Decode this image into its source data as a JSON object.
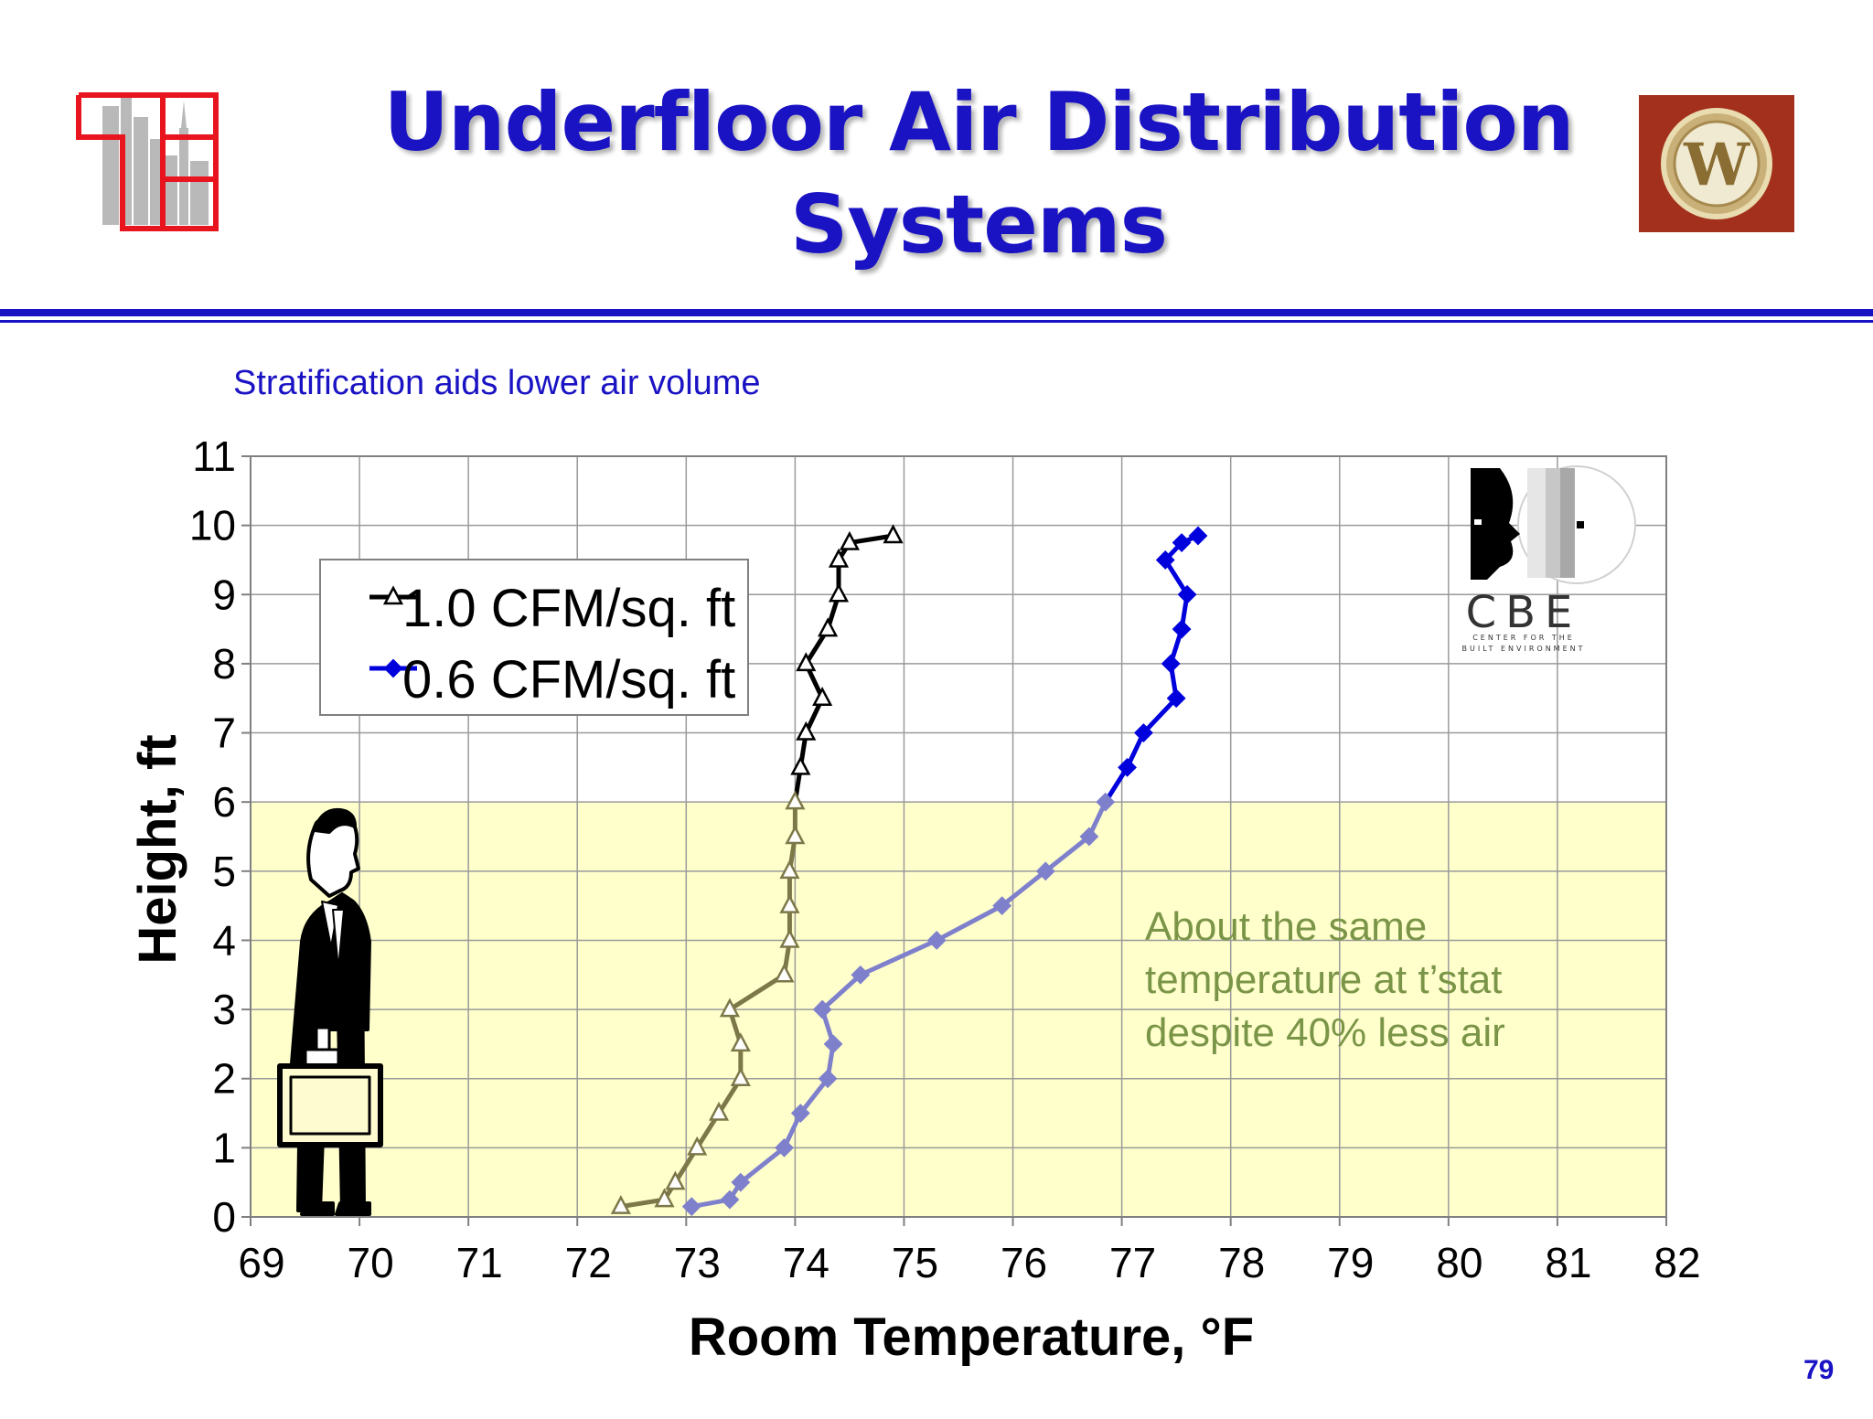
{
  "slide": {
    "title_line1": "Underfloor Air Distribution",
    "title_line2": "Systems",
    "subtitle": "Stratification aids lower air volume",
    "page_number": "79"
  },
  "logos": {
    "right_badge_letter": "W",
    "cbe_text": "CBE",
    "cbe_line1": "CENTER FOR THE",
    "cbe_line2": "BUILT ENVIRONMENT"
  },
  "colors": {
    "title_blue": "#1a13c4",
    "occupied_zone": "#ffffcc",
    "series1_upper": "#000000",
    "series1_lower": "#7d7849",
    "series2_upper": "#0000dd",
    "series2_lower": "#7f80cc",
    "annotation": "#7b9548"
  },
  "chart_data": {
    "type": "line",
    "xlabel": "Room Temperature, °F",
    "ylabel": "Height, ft",
    "xlim": [
      69,
      82
    ],
    "ylim": [
      0,
      11
    ],
    "x_ticks": [
      "69",
      "70",
      "71",
      "72",
      "73",
      "74",
      "75",
      "76",
      "77",
      "78",
      "79",
      "80",
      "81",
      "82"
    ],
    "y_ticks": [
      "0",
      "1",
      "2",
      "3",
      "4",
      "5",
      "6",
      "7",
      "8",
      "9",
      "10",
      "11"
    ],
    "grid": true,
    "legend_placement": "top-left",
    "occupied_zone_height": 6,
    "annotation": [
      "About the same",
      "temperature at t’stat",
      "despite 40% less air"
    ],
    "series": [
      {
        "name": "1.0 CFM/sq. ft",
        "marker": "triangle",
        "points": [
          [
            72.4,
            0.15
          ],
          [
            72.8,
            0.25
          ],
          [
            72.9,
            0.5
          ],
          [
            73.1,
            1.0
          ],
          [
            73.3,
            1.5
          ],
          [
            73.5,
            2.0
          ],
          [
            73.5,
            2.5
          ],
          [
            73.4,
            3.0
          ],
          [
            73.9,
            3.5
          ],
          [
            73.95,
            4.0
          ],
          [
            73.95,
            4.5
          ],
          [
            73.95,
            5.0
          ],
          [
            74.0,
            5.5
          ],
          [
            74.0,
            6.0
          ],
          [
            74.05,
            6.5
          ],
          [
            74.1,
            7.0
          ],
          [
            74.25,
            7.5
          ],
          [
            74.1,
            8.0
          ],
          [
            74.3,
            8.5
          ],
          [
            74.4,
            9.0
          ],
          [
            74.4,
            9.5
          ],
          [
            74.5,
            9.75
          ],
          [
            74.9,
            9.85
          ]
        ]
      },
      {
        "name": "0.6 CFM/sq. ft",
        "marker": "diamond",
        "points": [
          [
            73.05,
            0.15
          ],
          [
            73.4,
            0.25
          ],
          [
            73.5,
            0.5
          ],
          [
            73.9,
            1.0
          ],
          [
            74.05,
            1.5
          ],
          [
            74.3,
            2.0
          ],
          [
            74.35,
            2.5
          ],
          [
            74.25,
            3.0
          ],
          [
            74.6,
            3.5
          ],
          [
            75.3,
            4.0
          ],
          [
            75.9,
            4.5
          ],
          [
            76.3,
            5.0
          ],
          [
            76.7,
            5.5
          ],
          [
            76.85,
            6.0
          ],
          [
            77.05,
            6.5
          ],
          [
            77.2,
            7.0
          ],
          [
            77.5,
            7.5
          ],
          [
            77.45,
            8.0
          ],
          [
            77.55,
            8.5
          ],
          [
            77.6,
            9.0
          ],
          [
            77.4,
            9.5
          ],
          [
            77.55,
            9.75
          ],
          [
            77.7,
            9.85
          ]
        ]
      }
    ]
  }
}
